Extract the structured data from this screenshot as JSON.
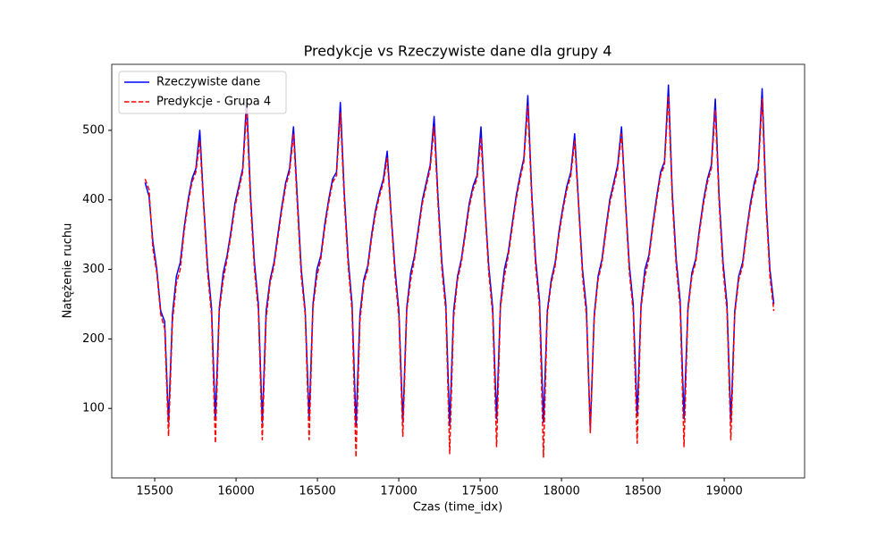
{
  "chart_data": {
    "type": "line",
    "title": "Predykcje vs Rzeczywiste dane dla grupy 4",
    "xlabel": "Czas (time_idx)",
    "ylabel": "Natężenie ruchu",
    "legend": "upper left",
    "xlim": [
      15236,
      19494
    ],
    "ylim": [
      0,
      595
    ],
    "xticks": [
      15500,
      16000,
      16500,
      17000,
      17500,
      18000,
      18500,
      19000
    ],
    "yticks": [
      100,
      200,
      300,
      400,
      500
    ],
    "x": [
      15441,
      15465,
      15489,
      15513,
      15537,
      15561,
      15585,
      15609,
      15633,
      15657,
      15681,
      15705,
      15729,
      15753,
      15777,
      15801,
      15825,
      15849,
      15873,
      15897,
      15921,
      15945,
      15969,
      15993,
      16017,
      16041,
      16065,
      16089,
      16113,
      16137,
      16161,
      16185,
      16209,
      16233,
      16257,
      16281,
      16305,
      16329,
      16353,
      16377,
      16401,
      16425,
      16449,
      16473,
      16497,
      16521,
      16545,
      16569,
      16593,
      16617,
      16641,
      16665,
      16689,
      16713,
      16737,
      16761,
      16785,
      16809,
      16833,
      16857,
      16881,
      16905,
      16929,
      16953,
      16977,
      17001,
      17025,
      17049,
      17073,
      17097,
      17121,
      17145,
      17169,
      17193,
      17217,
      17241,
      17265,
      17289,
      17313,
      17337,
      17361,
      17385,
      17409,
      17433,
      17457,
      17481,
      17505,
      17529,
      17553,
      17577,
      17601,
      17625,
      17649,
      17673,
      17697,
      17721,
      17745,
      17769,
      17793,
      17817,
      17841,
      17865,
      17889,
      17913,
      17937,
      17961,
      17985,
      18009,
      18033,
      18057,
      18081,
      18105,
      18129,
      18153,
      18177,
      18201,
      18225,
      18249,
      18273,
      18297,
      18321,
      18345,
      18369,
      18393,
      18417,
      18441,
      18465,
      18489,
      18513,
      18537,
      18561,
      18585,
      18609,
      18633,
      18657,
      18681,
      18705,
      18729,
      18753,
      18777,
      18801,
      18825,
      18849,
      18873,
      18897,
      18921,
      18945,
      18969,
      18993,
      19017,
      19041,
      19065,
      19089,
      19113,
      19137,
      19161,
      19185,
      19209,
      19233,
      19257,
      19281,
      19305
    ],
    "series": [
      {
        "name": "Rzeczywiste dane",
        "color": "#0000ff",
        "dash": false,
        "values": [
          425,
          405,
          340,
          300,
          240,
          225,
          80,
          235,
          290,
          310,
          360,
          400,
          430,
          445,
          500,
          395,
          305,
          245,
          85,
          245,
          295,
          320,
          355,
          395,
          420,
          445,
          545,
          405,
          310,
          250,
          80,
          240,
          285,
          310,
          350,
          390,
          425,
          445,
          505,
          400,
          300,
          240,
          85,
          250,
          300,
          320,
          365,
          400,
          430,
          440,
          540,
          410,
          315,
          250,
          75,
          235,
          285,
          305,
          350,
          385,
          410,
          430,
          470,
          380,
          300,
          240,
          80,
          245,
          295,
          320,
          360,
          400,
          425,
          450,
          520,
          405,
          310,
          250,
          75,
          240,
          290,
          315,
          355,
          395,
          420,
          435,
          505,
          395,
          305,
          245,
          85,
          250,
          300,
          325,
          365,
          405,
          435,
          460,
          550,
          410,
          315,
          255,
          80,
          240,
          285,
          310,
          355,
          390,
          420,
          440,
          495,
          395,
          300,
          245,
          70,
          235,
          290,
          315,
          360,
          400,
          425,
          450,
          505,
          400,
          305,
          250,
          90,
          250,
          300,
          320,
          365,
          405,
          440,
          455,
          565,
          410,
          315,
          255,
          85,
          245,
          295,
          315,
          360,
          400,
          430,
          450,
          545,
          405,
          310,
          250,
          80,
          240,
          290,
          310,
          355,
          395,
          425,
          445,
          560,
          400,
          300,
          250
        ]
      },
      {
        "name": "Predykcje - Grupa 4",
        "color": "#ff0000",
        "dash": true,
        "values": [
          430,
          415,
          330,
          295,
          235,
          215,
          60,
          225,
          280,
          300,
          355,
          395,
          425,
          440,
          485,
          390,
          295,
          235,
          50,
          240,
          285,
          315,
          350,
          390,
          415,
          440,
          530,
          395,
          300,
          240,
          55,
          230,
          280,
          305,
          345,
          385,
          420,
          440,
          495,
          390,
          290,
          235,
          55,
          245,
          290,
          315,
          360,
          395,
          425,
          435,
          525,
          400,
          305,
          240,
          30,
          225,
          280,
          300,
          345,
          380,
          405,
          425,
          460,
          375,
          290,
          230,
          60,
          240,
          285,
          315,
          355,
          395,
          420,
          445,
          505,
          395,
          300,
          240,
          35,
          230,
          285,
          310,
          350,
          390,
          415,
          430,
          490,
          390,
          295,
          235,
          45,
          245,
          290,
          320,
          360,
          400,
          430,
          455,
          535,
          400,
          305,
          245,
          30,
          235,
          280,
          305,
          350,
          385,
          415,
          435,
          485,
          390,
          290,
          235,
          65,
          230,
          285,
          310,
          355,
          395,
          420,
          445,
          495,
          395,
          295,
          240,
          50,
          245,
          290,
          315,
          360,
          400,
          435,
          450,
          550,
          400,
          305,
          245,
          45,
          240,
          290,
          310,
          355,
          395,
          425,
          445,
          530,
          395,
          300,
          240,
          55,
          235,
          285,
          305,
          350,
          390,
          420,
          440,
          545,
          390,
          290,
          240
        ]
      }
    ]
  }
}
